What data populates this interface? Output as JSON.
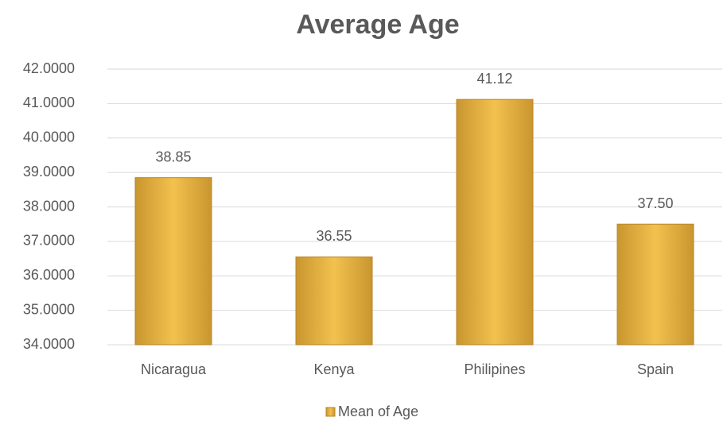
{
  "chart_data": {
    "type": "bar",
    "title": "Average Age",
    "categories": [
      "Nicaragua",
      "Kenya",
      "Philipines",
      "Spain"
    ],
    "series": [
      {
        "name": "Mean of Age",
        "color": "#f2c14e",
        "values": [
          38.85,
          36.55,
          41.12,
          37.5
        ],
        "value_labels": [
          "38.85",
          "36.55",
          "41.12",
          "37.50"
        ]
      }
    ],
    "ylim": [
      34,
      42
    ],
    "yticks": [
      {
        "value": 34,
        "label": "34.0000"
      },
      {
        "value": 35,
        "label": "35.0000"
      },
      {
        "value": 36,
        "label": "36.0000"
      },
      {
        "value": 37,
        "label": "37.0000"
      },
      {
        "value": 38,
        "label": "38.0000"
      },
      {
        "value": 39,
        "label": "39.0000"
      },
      {
        "value": 40,
        "label": "40.0000"
      },
      {
        "value": 41,
        "label": "41.0000"
      },
      {
        "value": 42,
        "label": "42.0000"
      }
    ],
    "grid": true,
    "legend": "bottom"
  }
}
